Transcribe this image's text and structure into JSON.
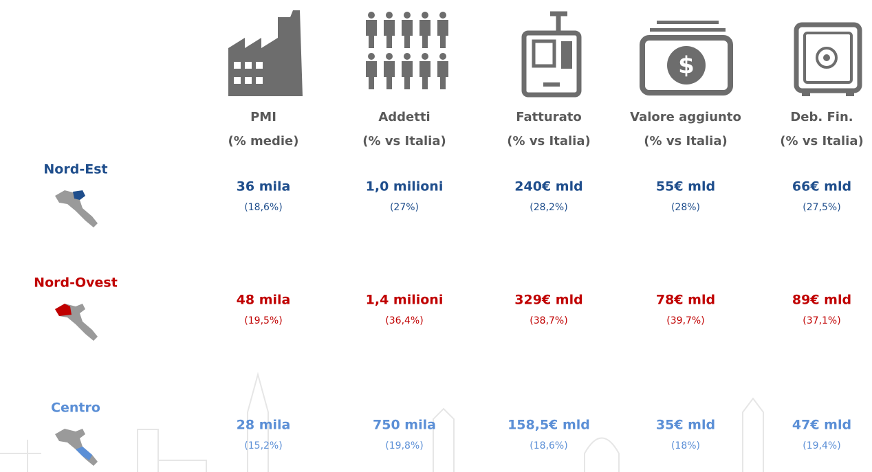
{
  "columns": [
    {
      "title": "PMI",
      "subtitle": "(% medie)"
    },
    {
      "title": "Addetti",
      "subtitle": "(% vs Italia)"
    },
    {
      "title": "Fatturato",
      "subtitle": "(% vs Italia)"
    },
    {
      "title": "Valore aggiunto",
      "subtitle": "(% vs Italia)"
    },
    {
      "title": "Deb. Fin.",
      "subtitle": "(% vs Italia)"
    }
  ],
  "rows": [
    {
      "region": "Nord-Est",
      "color": "#1f4e8c",
      "cells": [
        {
          "value": "36 mila",
          "share": "(18,6%)"
        },
        {
          "value": "1,0 milioni",
          "share": "(27%)"
        },
        {
          "value": "240€ mld",
          "share": "(28,2%)"
        },
        {
          "value": "55€ mld",
          "share": "(28%)"
        },
        {
          "value": "66€ mld",
          "share": "(27,5%)"
        }
      ]
    },
    {
      "region": "Nord-Ovest",
      "color": "#c00000",
      "cells": [
        {
          "value": "48 mila",
          "share": "(19,5%)"
        },
        {
          "value": "1,4 milioni",
          "share": "(36,4%)"
        },
        {
          "value": "329€ mld",
          "share": "(38,7%)"
        },
        {
          "value": "78€ mld",
          "share": "(39,7%)"
        },
        {
          "value": "89€ mld",
          "share": "(37,1%)"
        }
      ]
    },
    {
      "region": "Centro",
      "color": "#5b8fd6",
      "cells": [
        {
          "value": "28 mila",
          "share": "(15,2%)"
        },
        {
          "value": "750 mila",
          "share": "(19,8%)"
        },
        {
          "value": "158,5€ mld",
          "share": "(18,6%)"
        },
        {
          "value": "35€ mld",
          "share": "(18%)"
        },
        {
          "value": "47€ mld",
          "share": "(19,4%)"
        }
      ]
    }
  ]
}
